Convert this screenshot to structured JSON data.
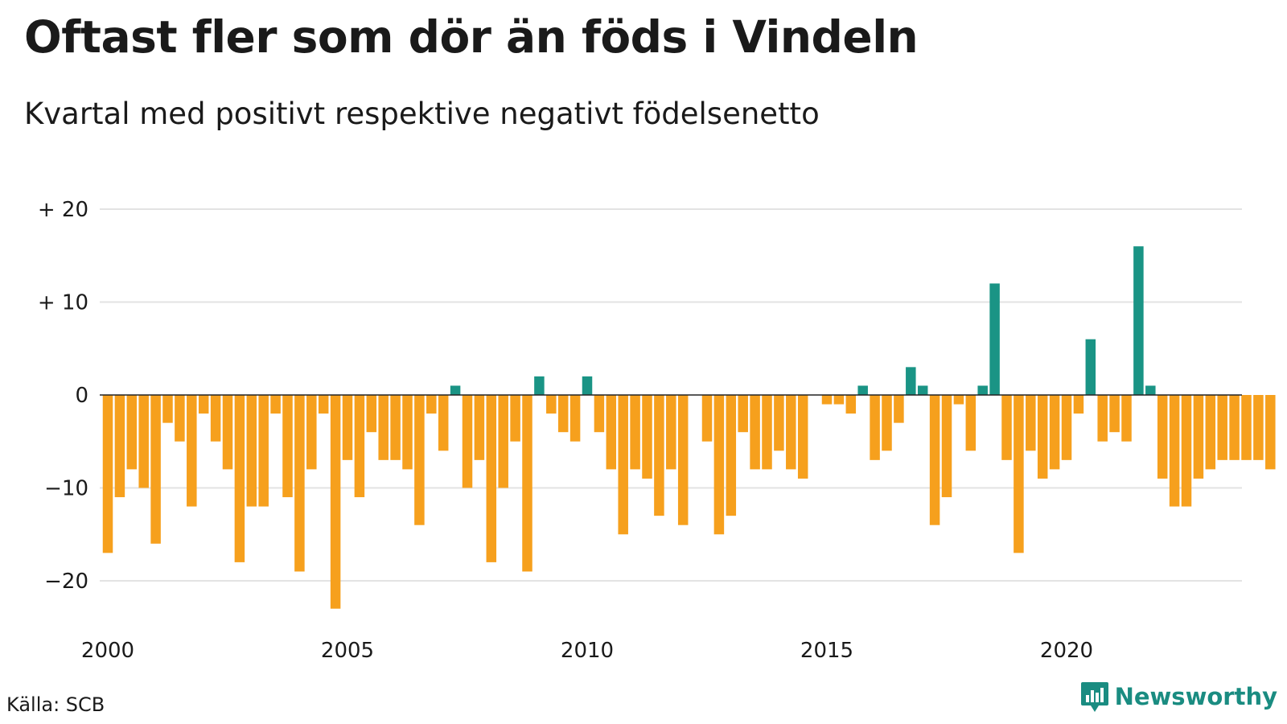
{
  "title": "Oftast fler som dör än föds i Vindeln",
  "subtitle": "Kvartal med positivt respektive negativt födelsenetto",
  "source": "Källa: SCB",
  "brand": "Newsworthy",
  "colors": {
    "positive": "#1a9485",
    "negative": "#f6a01d",
    "grid": "#e3e3e3",
    "zero_line": "#222222",
    "brand": "#1a8c81"
  },
  "chart_data": {
    "type": "bar",
    "y_ticks": [
      20,
      10,
      0,
      -10,
      -20
    ],
    "y_tick_labels": [
      "+ 20",
      "+ 10",
      "0",
      "−10",
      "−20"
    ],
    "x_ticks": [
      2000,
      2005,
      2010,
      2015,
      2020
    ],
    "x_tick_labels": [
      "2000",
      "2005",
      "2010",
      "2015",
      "2020"
    ],
    "grid": true,
    "series": [
      {
        "x": [
          "2000Q1",
          "2000Q2",
          "2000Q3",
          "2000Q4",
          "2001Q1",
          "2001Q2",
          "2001Q3",
          "2001Q4",
          "2002Q1",
          "2002Q2",
          "2002Q3",
          "2002Q4",
          "2003Q1",
          "2003Q2",
          "2003Q3",
          "2003Q4",
          "2004Q1",
          "2004Q2",
          "2004Q3",
          "2004Q4",
          "2005Q1",
          "2005Q2",
          "2005Q3",
          "2005Q4",
          "2006Q1",
          "2006Q2",
          "2006Q3",
          "2006Q4",
          "2007Q1",
          "2007Q2",
          "2007Q3",
          "2007Q4",
          "2008Q1",
          "2008Q2",
          "2008Q3",
          "2008Q4",
          "2009Q1",
          "2009Q2",
          "2009Q3",
          "2009Q4",
          "2010Q1",
          "2010Q2",
          "2010Q3",
          "2010Q4",
          "2011Q1",
          "2011Q2",
          "2011Q3",
          "2011Q4",
          "2012Q1",
          "2012Q2",
          "2012Q3",
          "2012Q4",
          "2013Q1",
          "2013Q2",
          "2013Q3",
          "2013Q4",
          "2014Q1",
          "2014Q2",
          "2014Q3",
          "2014Q4",
          "2015Q1",
          "2015Q2",
          "2015Q3",
          "2015Q4",
          "2016Q1",
          "2016Q2",
          "2016Q3",
          "2016Q4",
          "2017Q1",
          "2017Q2",
          "2017Q3",
          "2017Q4",
          "2018Q1",
          "2018Q2",
          "2018Q3",
          "2018Q4",
          "2019Q1",
          "2019Q2",
          "2019Q3",
          "2019Q4",
          "2020Q1",
          "2020Q2",
          "2020Q3",
          "2020Q4",
          "2021Q1",
          "2021Q2",
          "2021Q3",
          "2021Q4",
          "2022Q1",
          "2022Q2",
          "2022Q3",
          "2022Q4",
          "2023Q1",
          "2023Q2",
          "2023Q3",
          "2023Q4",
          "2024Q1",
          "2024Q2"
        ],
        "values": [
          -17,
          -11,
          -8,
          -10,
          -16,
          -3,
          -5,
          -12,
          -2,
          -5,
          -8,
          -18,
          -12,
          -12,
          -2,
          -11,
          -19,
          -8,
          -2,
          -23,
          -7,
          -11,
          -4,
          -7,
          -7,
          -8,
          -14,
          -2,
          -6,
          1,
          -10,
          -7,
          -18,
          -10,
          -5,
          -19,
          2,
          -2,
          -4,
          -5,
          2,
          -4,
          -8,
          -15,
          -8,
          -9,
          -13,
          -8,
          -14,
          0,
          -5,
          -15,
          -13,
          -4,
          -8,
          -8,
          -6,
          -8,
          -9,
          0,
          -1,
          -1,
          -2,
          1,
          -7,
          -6,
          -3,
          3,
          1,
          -14,
          -11,
          -1,
          -6,
          1,
          12,
          -7,
          -17,
          -6,
          -9,
          -8,
          -7,
          -2,
          6,
          -5,
          -4,
          -5,
          16,
          1,
          -9,
          -12,
          -12,
          -9,
          -8,
          -7,
          -7,
          -7,
          -7,
          -8
        ]
      }
    ]
  }
}
